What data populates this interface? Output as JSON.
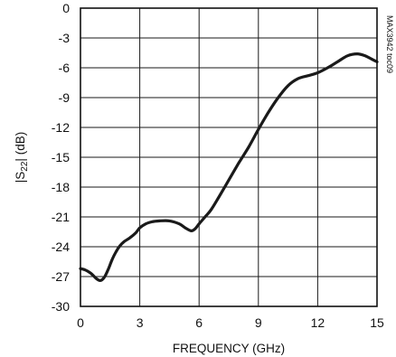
{
  "chart_data": {
    "type": "line",
    "xlabel": "FREQUENCY (GHz)",
    "ylabel": "|S22| (dB)",
    "ylabel_parts": {
      "prefix": "|S",
      "sub": "22",
      "suffix": "| (dB)"
    },
    "side_note": "MAX3942 toc09",
    "xlim": [
      0,
      15
    ],
    "ylim": [
      -30,
      0
    ],
    "x_ticks": [
      0,
      3,
      6,
      9,
      12,
      15
    ],
    "x_tick_labels": [
      "0",
      "3",
      "6",
      "9",
      "12",
      "15"
    ],
    "y_ticks": [
      0,
      -3,
      -6,
      -9,
      -12,
      -15,
      -18,
      -21,
      -24,
      -27,
      -30
    ],
    "y_tick_labels": [
      "0",
      "-3",
      "-6",
      "-9",
      "-12",
      "-15",
      "-18",
      "-21",
      "-24",
      "-27",
      "-30"
    ],
    "grid": true,
    "series": [
      {
        "x": [
          0.0,
          0.2,
          0.4,
          0.6,
          0.8,
          1.0,
          1.2,
          1.4,
          1.6,
          1.8,
          2.0,
          2.2,
          2.5,
          2.8,
          3.0,
          3.3,
          3.6,
          4.0,
          4.5,
          5.0,
          5.3,
          5.6,
          5.8,
          6.0,
          6.3,
          6.6,
          7.0,
          7.5,
          8.0,
          8.5,
          9.0,
          9.5,
          10.0,
          10.5,
          11.0,
          11.5,
          12.0,
          12.5,
          13.0,
          13.5,
          14.0,
          14.4,
          14.8,
          15.0
        ],
        "y": [
          -26.2,
          -26.3,
          -26.5,
          -26.8,
          -27.2,
          -27.4,
          -27.1,
          -26.3,
          -25.3,
          -24.5,
          -23.9,
          -23.5,
          -23.1,
          -22.6,
          -22.1,
          -21.7,
          -21.5,
          -21.4,
          -21.4,
          -21.7,
          -22.1,
          -22.4,
          -22.2,
          -21.7,
          -21.0,
          -20.3,
          -19.0,
          -17.3,
          -15.6,
          -14.0,
          -12.2,
          -10.5,
          -9.0,
          -7.8,
          -7.1,
          -6.8,
          -6.5,
          -6.0,
          -5.4,
          -4.8,
          -4.6,
          -4.8,
          -5.2,
          -5.4
        ]
      }
    ]
  }
}
